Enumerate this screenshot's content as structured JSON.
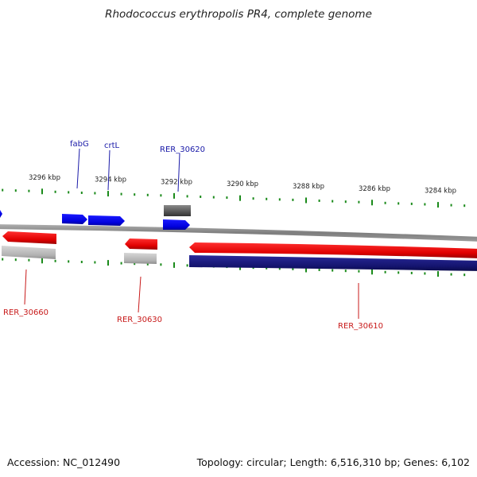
{
  "title": "Rhodococcus erythropolis PR4, complete genome",
  "footer": {
    "accession": "Accession: NC_012490",
    "summary": "Topology: circular; Length: 6,516,310 bp; Genes: 6,102"
  },
  "colors": {
    "backbone": "#8a8a8a",
    "forward_gene": "#0000ee",
    "reverse_gene": "#ee1111",
    "gene_feature": "#b8b8b8",
    "dark_gene_feature": "#5a5a5a",
    "long_feature": "#17177a",
    "tick": "#1a8a1a",
    "forward_label": "#1a1aa8",
    "reverse_label": "#c81a1a"
  },
  "scale": {
    "unit": "kbp",
    "major_ticks": [
      {
        "value": 3296,
        "label": "3296 kbp"
      },
      {
        "value": 3294,
        "label": "3294 kbp"
      },
      {
        "value": 3292,
        "label": "3292 kbp"
      },
      {
        "value": 3290,
        "label": "3290 kbp"
      },
      {
        "value": 3288,
        "label": "3288 kbp"
      },
      {
        "value": 3286,
        "label": "3286 kbp"
      },
      {
        "value": 3284,
        "label": "3284 kbp"
      }
    ]
  },
  "gene_labels": [
    {
      "text": "fabG",
      "strand": "forward"
    },
    {
      "text": "crtL",
      "strand": "forward"
    },
    {
      "text": "RER_30620",
      "strand": "forward"
    },
    {
      "text": "RER_30660",
      "strand": "reverse"
    },
    {
      "text": "RER_30630",
      "strand": "reverse"
    },
    {
      "text": "RER_30610",
      "strand": "reverse"
    }
  ]
}
